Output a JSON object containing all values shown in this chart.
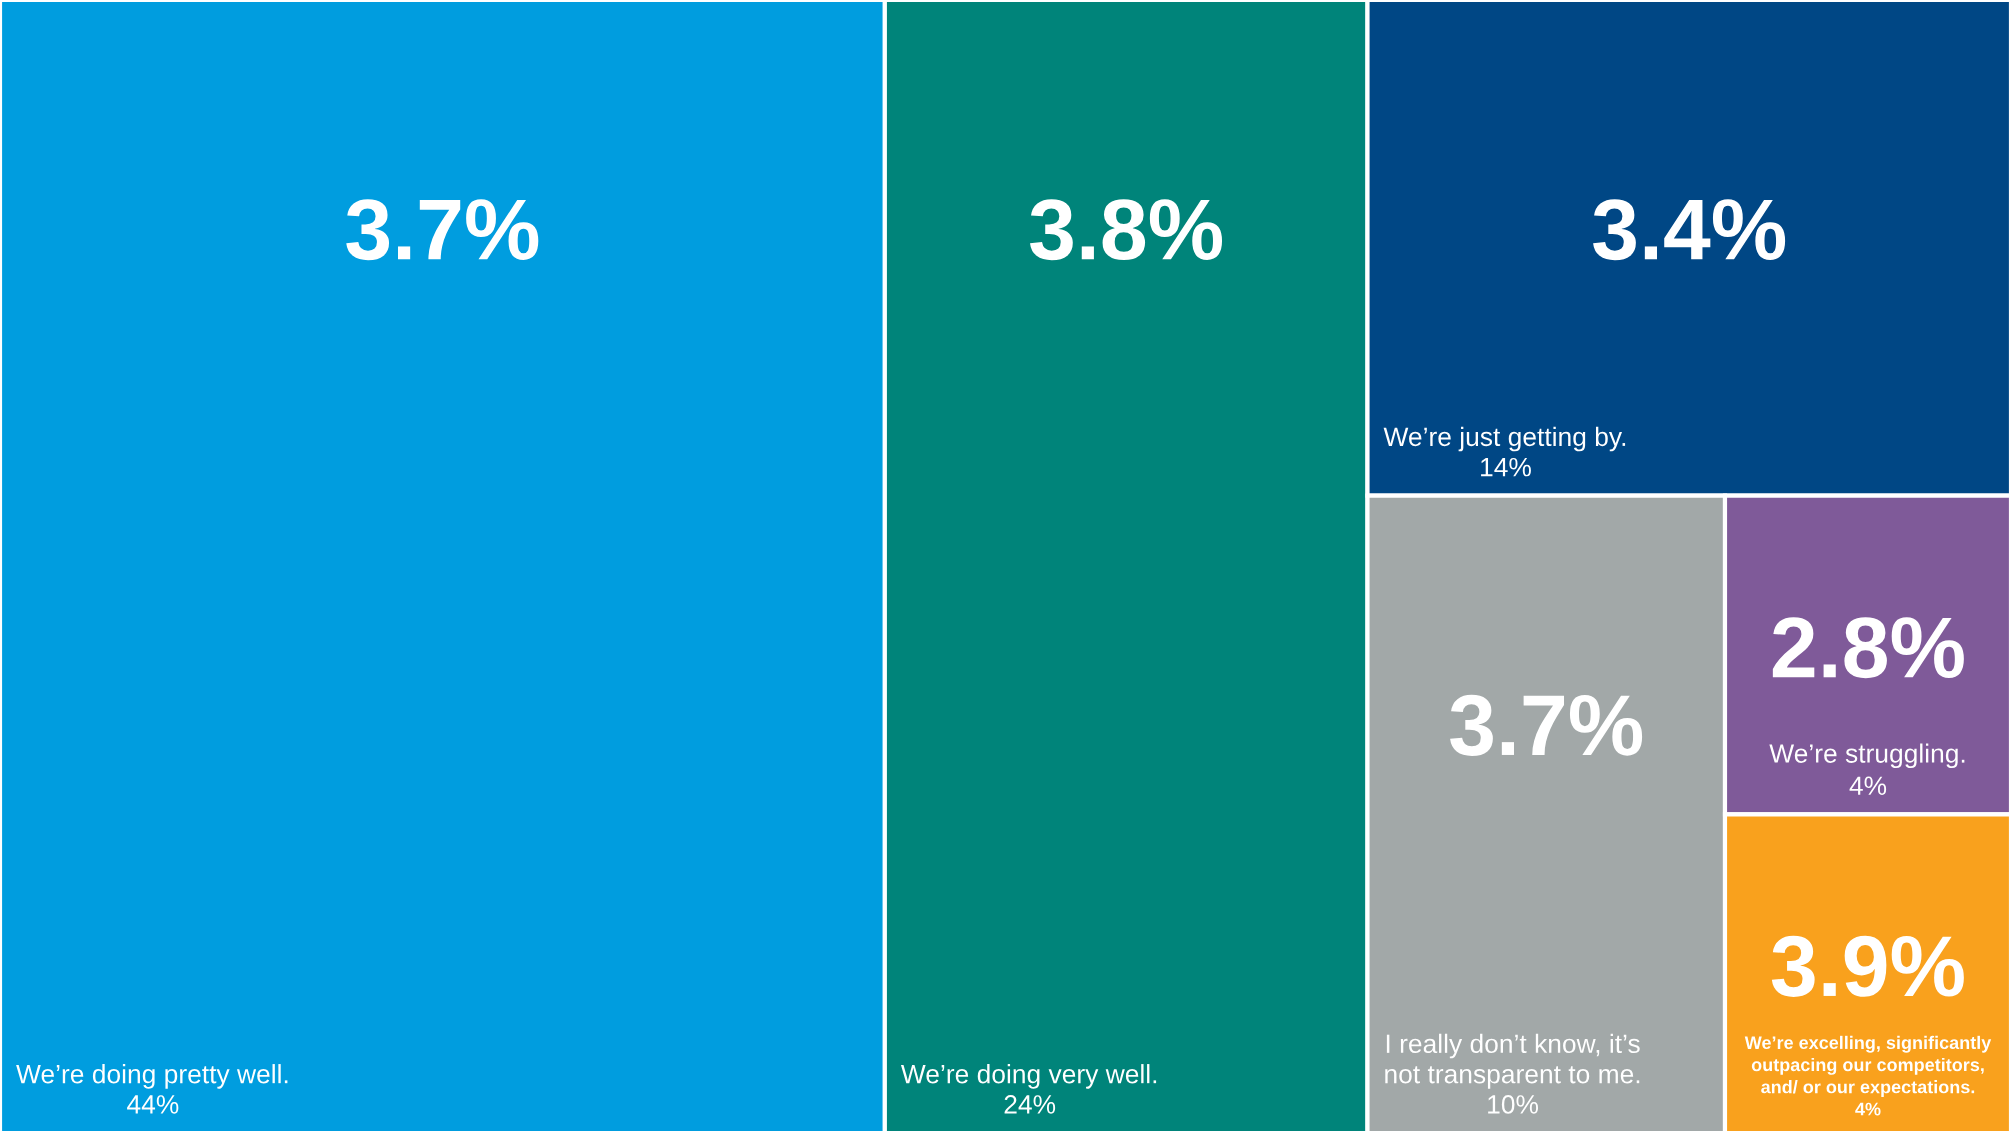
{
  "chart_data": {
    "type": "other",
    "categories": [
      "We’re doing pretty well.",
      "We’re doing very well.",
      "We’re just getting by.",
      "I really don’t know, it’s\nnot transparent to me.",
      "We’re struggling.",
      "We’re excelling, significantly\noutpacing our competitors,\nand/ or our expectations."
    ],
    "colors": [
      "#009ddf",
      "#00847a",
      "#004785",
      "#a2a8a8",
      "#7f5a99",
      "#f9a11d"
    ],
    "values": [
      44,
      24,
      14,
      10,
      4,
      4
    ],
    "value_labels": [
      "44%",
      "24%",
      "14%",
      "10%",
      "4%",
      "4%"
    ],
    "annotations": [
      "3.7%",
      "3.8%",
      "3.4%",
      "3.7%",
      "2.8%",
      "3.9%"
    ]
  }
}
